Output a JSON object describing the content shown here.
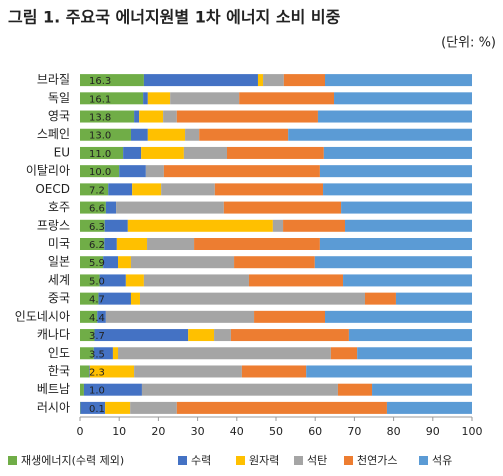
{
  "chart_data": {
    "type": "stacked-barh",
    "title": "그림 1. 주요국 에너지원별 1차 에너지 소비 비중",
    "subtitle": "(단위: %)",
    "categories": [
      "브라질",
      "독일",
      "영국",
      "스페인",
      "EU",
      "이탈리아",
      "OECD",
      "호주",
      "프랑스",
      "미국",
      "일본",
      "세계",
      "중국",
      "인도네시아",
      "캐나다",
      "인도",
      "한국",
      "베트남",
      "러시아"
    ],
    "series": [
      {
        "name": "재생에너지(수력 제외)",
        "color": "#70ad47",
        "values": [
          16.3,
          16.1,
          13.8,
          13.0,
          11.0,
          10.0,
          7.2,
          6.6,
          6.3,
          6.2,
          5.9,
          5.0,
          4.7,
          4.4,
          3.7,
          3.5,
          2.3,
          1.0,
          0.1
        ],
        "value_labels": [
          "16.3",
          "16.1",
          "13.8",
          "13.0",
          "11.0",
          "10.0",
          "7.2",
          "6.6",
          "6.3",
          "6.2",
          "5.9",
          "5.0",
          "4.7",
          "4.4",
          "3.7",
          "3.5",
          "2.3",
          "1.0",
          "0.1"
        ]
      },
      {
        "name": "수력",
        "color": "#4472c4",
        "values": [
          29.1,
          1.2,
          1.3,
          4.3,
          4.6,
          6.8,
          6.1,
          2.6,
          5.9,
          3.2,
          3.8,
          6.7,
          8.3,
          2.2,
          23.9,
          4.9,
          0.2,
          14.8,
          6.3
        ]
      },
      {
        "name": "원자력",
        "color": "#ffc000",
        "values": [
          1.3,
          5.7,
          6.1,
          9.5,
          10.9,
          0,
          7.4,
          0,
          37.0,
          7.7,
          3.3,
          4.6,
          2.3,
          0,
          6.6,
          1.3,
          11.3,
          0,
          6.4
        ]
      },
      {
        "name": "석탄",
        "color": "#a5a5a5",
        "values": [
          5.3,
          17.6,
          3.5,
          3.6,
          11.0,
          4.6,
          13.7,
          27.5,
          2.6,
          12.0,
          26.3,
          26.8,
          57.4,
          37.8,
          4.3,
          54.3,
          27.5,
          50.0,
          11.9
        ]
      },
      {
        "name": "천연가스",
        "color": "#ed7d31",
        "values": [
          10.5,
          24.2,
          36.0,
          22.7,
          24.7,
          39.8,
          27.6,
          29.9,
          15.8,
          32.1,
          20.6,
          24.0,
          7.9,
          18.1,
          30.1,
          6.7,
          16.4,
          8.7,
          53.6
        ]
      },
      {
        "name": "석유",
        "color": "#5b9bd5",
        "values": [
          37.5,
          35.2,
          39.3,
          46.9,
          37.8,
          38.8,
          38.0,
          33.4,
          32.4,
          38.8,
          40.1,
          32.9,
          19.4,
          37.5,
          31.4,
          29.3,
          42.3,
          25.5,
          21.7
        ]
      }
    ],
    "xlim": [
      0,
      100
    ],
    "xticks": [
      0,
      10,
      20,
      30,
      40,
      50,
      60,
      70,
      80,
      90,
      100
    ],
    "grid": false
  }
}
